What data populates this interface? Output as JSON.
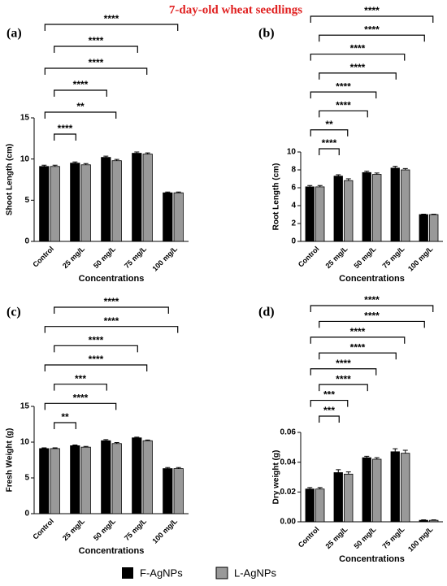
{
  "figure_title": "7-day-old wheat seedlings",
  "chart_data": [
    {
      "type": "bar",
      "panel": "(a)",
      "ylabel": "Shoot Length (cm)",
      "xlabel": "Concentrations",
      "categories": [
        "Control",
        "25 mg/L",
        "50 mg/L",
        "75 mg/L",
        "100 mg/L"
      ],
      "series": [
        {
          "name": "F-AgNPs",
          "color": "#000000",
          "values": [
            9.1,
            9.5,
            10.2,
            10.7,
            5.9
          ],
          "errors": [
            0.15,
            0.15,
            0.15,
            0.15,
            0.1
          ]
        },
        {
          "name": "L-AgNPs",
          "color": "#999999",
          "values": [
            9.1,
            9.3,
            9.8,
            10.6,
            5.9
          ],
          "errors": [
            0.15,
            0.15,
            0.15,
            0.15,
            0.1
          ]
        }
      ],
      "ylim": [
        0,
        15
      ],
      "yticks": [
        0,
        5,
        10,
        15
      ],
      "brackets": [
        {
          "label": "****",
          "to": "25 mg/L"
        },
        {
          "label": "**",
          "to": "50 mg/L"
        },
        {
          "label": "****",
          "to": "50 mg/L"
        },
        {
          "label": "****",
          "to": "75 mg/L"
        },
        {
          "label": "****",
          "to": "75 mg/L"
        },
        {
          "label": "****",
          "to": "100 mg/L"
        }
      ]
    },
    {
      "type": "bar",
      "panel": "(b)",
      "ylabel": "Root Length (cm)",
      "xlabel": "Concentrations",
      "categories": [
        "Control",
        "25 mg/L",
        "50 mg/L",
        "75 mg/L",
        "100 mg/L"
      ],
      "series": [
        {
          "name": "F-AgNPs",
          "color": "#000000",
          "values": [
            6.1,
            7.3,
            7.7,
            8.2,
            3.0
          ],
          "errors": [
            0.15,
            0.15,
            0.15,
            0.2,
            0.05
          ]
        },
        {
          "name": "L-AgNPs",
          "color": "#999999",
          "values": [
            6.1,
            6.8,
            7.5,
            8.0,
            3.0
          ],
          "errors": [
            0.15,
            0.2,
            0.15,
            0.15,
            0.05
          ]
        }
      ],
      "ylim": [
        0,
        10
      ],
      "yticks": [
        0,
        2,
        4,
        6,
        8,
        10
      ],
      "brackets": [
        {
          "label": "****",
          "to": "25 mg/L"
        },
        {
          "label": "**",
          "to": "25 mg/L"
        },
        {
          "label": "****",
          "to": "50 mg/L"
        },
        {
          "label": "****",
          "to": "50 mg/L"
        },
        {
          "label": "****",
          "to": "75 mg/L"
        },
        {
          "label": "****",
          "to": "75 mg/L"
        },
        {
          "label": "****",
          "to": "100 mg/L"
        },
        {
          "label": "****",
          "to": "100 mg/L"
        }
      ]
    },
    {
      "type": "bar",
      "panel": "(c)",
      "ylabel": "Fresh Weight (g)",
      "xlabel": "Concentrations",
      "categories": [
        "Control",
        "25 mg/L",
        "50 mg/L",
        "75 mg/L",
        "100 mg/L"
      ],
      "series": [
        {
          "name": "F-AgNPs",
          "color": "#000000",
          "values": [
            9.1,
            9.5,
            10.2,
            10.6,
            6.3
          ],
          "errors": [
            0.1,
            0.1,
            0.15,
            0.1,
            0.15
          ]
        },
        {
          "name": "L-AgNPs",
          "color": "#999999",
          "values": [
            9.1,
            9.3,
            9.8,
            10.2,
            6.3
          ],
          "errors": [
            0.1,
            0.1,
            0.15,
            0.1,
            0.15
          ]
        }
      ],
      "ylim": [
        0,
        15
      ],
      "yticks": [
        0,
        5,
        10,
        15
      ],
      "brackets": [
        {
          "label": "**",
          "to": "25 mg/L"
        },
        {
          "label": "****",
          "to": "50 mg/L"
        },
        {
          "label": "***",
          "to": "50 mg/L"
        },
        {
          "label": "****",
          "to": "75 mg/L"
        },
        {
          "label": "****",
          "to": "75 mg/L"
        },
        {
          "label": "****",
          "to": "100 mg/L"
        },
        {
          "label": "****",
          "to": "100 mg/L"
        }
      ]
    },
    {
      "type": "bar",
      "panel": "(d)",
      "ylabel": "Dry weight (g)",
      "xlabel": "Concentrations",
      "categories": [
        "Control",
        "25 mg/L",
        "50 mg/L",
        "75 mg/L",
        "100 mg/L"
      ],
      "series": [
        {
          "name": "F-AgNPs",
          "color": "#000000",
          "values": [
            0.022,
            0.033,
            0.043,
            0.047,
            0.001
          ],
          "errors": [
            0.001,
            0.002,
            0.001,
            0.002,
            0.0003
          ]
        },
        {
          "name": "L-AgNPs",
          "color": "#999999",
          "values": [
            0.022,
            0.032,
            0.042,
            0.046,
            0.001
          ],
          "errors": [
            0.001,
            0.0015,
            0.001,
            0.002,
            0.0003
          ]
        }
      ],
      "ylim": [
        0,
        0.06
      ],
      "yticks": [
        {
          "value": 0,
          "label": "0.00"
        },
        0.02,
        0.04,
        0.06
      ],
      "brackets": [
        {
          "label": "***",
          "to": "25 mg/L"
        },
        {
          "label": "***",
          "to": "25 mg/L"
        },
        {
          "label": "****",
          "to": "50 mg/L"
        },
        {
          "label": "****",
          "to": "50 mg/L"
        },
        {
          "label": "****",
          "to": "75 mg/L"
        },
        {
          "label": "****",
          "to": "75 mg/L"
        },
        {
          "label": "****",
          "to": "100 mg/L"
        },
        {
          "label": "****",
          "to": "100 mg/L"
        }
      ]
    }
  ]
}
